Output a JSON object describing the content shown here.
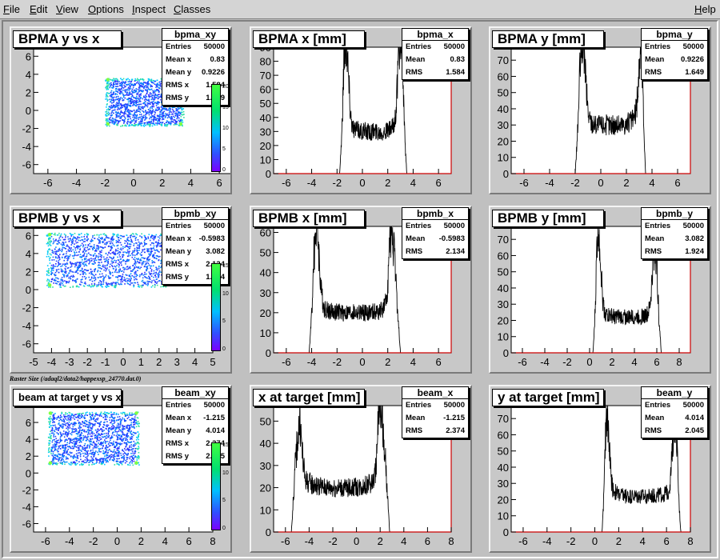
{
  "menu": {
    "items": [
      {
        "label": "File",
        "u": "F",
        "rest": "ile"
      },
      {
        "label": "Edit",
        "u": "E",
        "rest": "dit"
      },
      {
        "label": "View",
        "u": "V",
        "rest": "iew"
      },
      {
        "label": "Options",
        "u": "O",
        "rest": "ptions"
      },
      {
        "label": "Inspect",
        "u": "I",
        "rest": "nspect"
      },
      {
        "label": "Classes",
        "u": "C",
        "rest": "lasses"
      }
    ],
    "help": {
      "label": "Help",
      "u": "H",
      "rest": "elp"
    }
  },
  "caption": "Raster Size (/adaql2/data2/happexsp_24770.dat.0)",
  "colors": {
    "histogram": "#000000",
    "axis_red": "#cc0000",
    "palette_low": "#7a00ff",
    "palette_high": "#40ff40"
  },
  "pads": [
    {
      "title": "BPMA y vs x",
      "stats": {
        "name": "bpma_xy",
        "rows": [
          [
            "Entries",
            "50000"
          ],
          [
            "Mean x",
            "0.83"
          ],
          [
            "Mean y",
            "0.9226"
          ],
          [
            "RMS x",
            "1.584"
          ],
          [
            "RMS y",
            "1.649"
          ]
        ]
      },
      "palette_labels": [
        "20",
        "15",
        "10",
        "5",
        "0"
      ]
    },
    {
      "title": "BPMA x [mm]",
      "stats": {
        "name": "bpma_x",
        "rows": [
          [
            "Entries",
            "50000"
          ],
          [
            "Mean",
            "0.83"
          ],
          [
            "RMS",
            "1.584"
          ]
        ]
      }
    },
    {
      "title": "BPMA y [mm]",
      "stats": {
        "name": "bpma_y",
        "rows": [
          [
            "Entries",
            "50000"
          ],
          [
            "Mean",
            "0.9226"
          ],
          [
            "RMS",
            "1.649"
          ]
        ]
      }
    },
    {
      "title": "BPMB y vs x",
      "stats": {
        "name": "bpmb_xy",
        "rows": [
          [
            "Entries",
            "50000"
          ],
          [
            "Mean x",
            "-0.5983"
          ],
          [
            "Mean y",
            "3.082"
          ],
          [
            "RMS x",
            "2.134"
          ],
          [
            "RMS y",
            "1.924"
          ]
        ]
      },
      "palette_labels": [
        "15",
        "10",
        "5",
        "0"
      ]
    },
    {
      "title": "BPMB x [mm]",
      "stats": {
        "name": "bpmb_x",
        "rows": [
          [
            "Entries",
            "50000"
          ],
          [
            "Mean",
            "-0.5983"
          ],
          [
            "RMS",
            "2.134"
          ]
        ]
      }
    },
    {
      "title": "BPMB y [mm]",
      "stats": {
        "name": "bpmb_y",
        "rows": [
          [
            "Entries",
            "50000"
          ],
          [
            "Mean",
            "3.082"
          ],
          [
            "RMS",
            "1.924"
          ]
        ]
      }
    },
    {
      "title": "beam at target y vs x",
      "stats": {
        "name": "beam_xy",
        "rows": [
          [
            "Entries",
            "50000"
          ],
          [
            "Mean x",
            "-1.215"
          ],
          [
            "Mean y",
            "4.014"
          ],
          [
            "RMS x",
            "2.374"
          ],
          [
            "RMS y",
            "2.045"
          ]
        ]
      },
      "palette_labels": [
        "15",
        "10",
        "5",
        "0"
      ]
    },
    {
      "title": "x at target [mm]",
      "stats": {
        "name": "beam_x",
        "rows": [
          [
            "Entries",
            "50000"
          ],
          [
            "Mean",
            "-1.215"
          ],
          [
            "RMS",
            "2.374"
          ]
        ]
      }
    },
    {
      "title": "y at target [mm]",
      "stats": {
        "name": "beam_y",
        "rows": [
          [
            "Entries",
            "50000"
          ],
          [
            "Mean",
            "4.014"
          ],
          [
            "RMS",
            "2.045"
          ]
        ]
      }
    }
  ],
  "chart_data": [
    {
      "type": "heatmap",
      "title": "BPMA y vs x",
      "xlim": [
        -7,
        7
      ],
      "ylim": [
        -7,
        7
      ],
      "xticks": [
        -6,
        -4,
        -2,
        0,
        2,
        4,
        6
      ],
      "yticks": [
        -6,
        -4,
        -2,
        0,
        2,
        4,
        6
      ],
      "region": {
        "x": [
          -2,
          3.5
        ],
        "y": [
          -1.7,
          3.6
        ]
      }
    },
    {
      "type": "bar",
      "title": "BPMA x [mm]",
      "xlim": [
        -7,
        7
      ],
      "ylim": [
        0,
        90
      ],
      "xticks": [
        -6,
        -4,
        -2,
        0,
        2,
        4,
        6
      ],
      "yticks": [
        0,
        10,
        20,
        30,
        40,
        50,
        60,
        70,
        80,
        90
      ],
      "shape": {
        "edges": [
          -1.8,
          3.5
        ],
        "peaks": [
          [
            -1.3,
            88
          ],
          [
            3.0,
            90
          ]
        ],
        "floor": 30
      }
    },
    {
      "type": "bar",
      "title": "BPMA y [mm]",
      "xlim": [
        -7,
        7
      ],
      "ylim": [
        0,
        78
      ],
      "xticks": [
        -6,
        -4,
        -2,
        0,
        2,
        4,
        6
      ],
      "yticks": [
        0,
        10,
        20,
        30,
        40,
        50,
        60,
        70
      ],
      "shape": {
        "edges": [
          -2,
          3.5
        ],
        "peaks": [
          [
            -1.4,
            76
          ],
          [
            3.2,
            74
          ]
        ],
        "floor": 30
      }
    },
    {
      "type": "heatmap",
      "title": "BPMB y vs x",
      "xlim": [
        -5,
        5
      ],
      "ylim": [
        -7,
        7
      ],
      "xticks": [
        -5,
        -4,
        -3,
        -2,
        -1,
        0,
        1,
        2,
        3,
        4,
        5
      ],
      "yticks": [
        -6,
        -4,
        -2,
        0,
        2,
        4,
        6
      ],
      "region": {
        "x": [
          -4.3,
          2.5
        ],
        "y": [
          0.3,
          6.3
        ]
      }
    },
    {
      "type": "bar",
      "title": "BPMB x [mm]",
      "xlim": [
        -7,
        7
      ],
      "ylim": [
        0,
        63
      ],
      "xticks": [
        -6,
        -4,
        -2,
        0,
        2,
        4,
        6
      ],
      "yticks": [
        0,
        10,
        20,
        30,
        40,
        50,
        60
      ],
      "shape": {
        "edges": [
          -4.2,
          3.0
        ],
        "peaks": [
          [
            -3.6,
            57
          ],
          [
            2.3,
            57
          ]
        ],
        "floor": 20
      }
    },
    {
      "type": "bar",
      "title": "BPMB y [mm]",
      "xlim": [
        -7,
        9
      ],
      "ylim": [
        0,
        78
      ],
      "xticks": [
        -6,
        -4,
        -2,
        0,
        2,
        4,
        6,
        8
      ],
      "yticks": [
        0,
        10,
        20,
        30,
        40,
        50,
        60,
        70
      ],
      "shape": {
        "edges": [
          0.3,
          6.4
        ],
        "peaks": [
          [
            0.8,
            70
          ],
          [
            5.8,
            60
          ]
        ],
        "floor": 22
      }
    },
    {
      "type": "heatmap",
      "title": "beam at target y vs x",
      "xlim": [
        -7,
        8
      ],
      "ylim": [
        -7,
        8
      ],
      "xticks": [
        -6,
        -4,
        -2,
        0,
        2,
        4,
        6,
        8
      ],
      "yticks": [
        -6,
        -4,
        -2,
        0,
        2,
        4,
        6
      ],
      "region": {
        "x": [
          -5.8,
          1.8
        ],
        "y": [
          1.0,
          7.3
        ]
      }
    },
    {
      "type": "bar",
      "title": "x at target [mm]",
      "xlim": [
        -7,
        8
      ],
      "ylim": [
        0,
        57
      ],
      "xticks": [
        -6,
        -4,
        -2,
        0,
        2,
        4,
        6,
        8
      ],
      "yticks": [
        0,
        10,
        20,
        30,
        40,
        50
      ],
      "shape": {
        "edges": [
          -5.5,
          2.8
        ],
        "peaks": [
          [
            -4.8,
            42
          ],
          [
            2.0,
            55
          ]
        ],
        "floor": 20
      }
    },
    {
      "type": "bar",
      "title": "y at target [mm]",
      "xlim": [
        -7,
        8
      ],
      "ylim": [
        0,
        78
      ],
      "xticks": [
        -6,
        -4,
        -2,
        0,
        2,
        4,
        6,
        8
      ],
      "yticks": [
        0,
        10,
        20,
        30,
        40,
        50,
        60,
        70
      ],
      "shape": {
        "edges": [
          0.6,
          7.2
        ],
        "peaks": [
          [
            1.0,
            66
          ],
          [
            6.7,
            63
          ]
        ],
        "floor": 22
      }
    }
  ]
}
